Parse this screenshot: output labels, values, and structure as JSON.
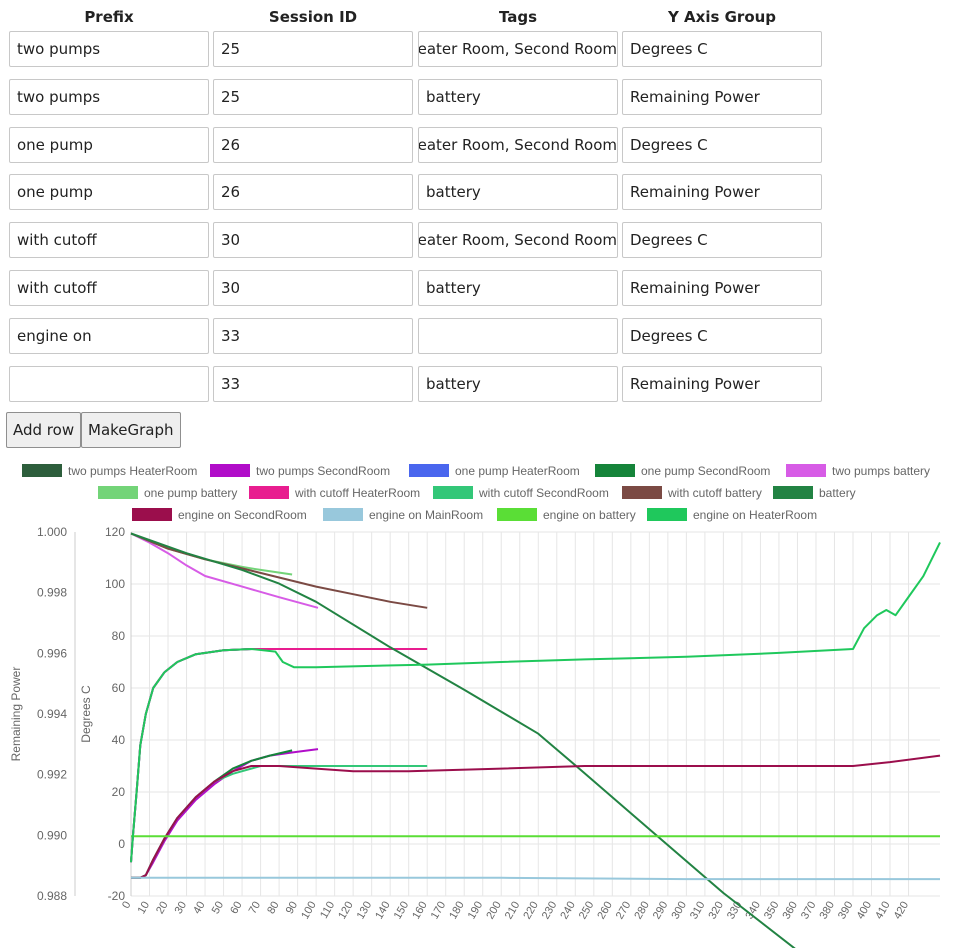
{
  "table": {
    "headers": [
      "Prefix",
      "Session ID",
      "Tags",
      "Y Axis Group"
    ],
    "rows": [
      {
        "prefix": "two pumps",
        "session": "25",
        "tags": "Heater Room, Second Room",
        "group": "Degrees C"
      },
      {
        "prefix": "two pumps",
        "session": "25",
        "tags": "battery",
        "group": "Remaining Power"
      },
      {
        "prefix": "one pump",
        "session": "26",
        "tags": "Heater Room, Second Room",
        "group": "Degrees C"
      },
      {
        "prefix": "one pump",
        "session": "26",
        "tags": "battery",
        "group": "Remaining Power"
      },
      {
        "prefix": "with cutoff",
        "session": "30",
        "tags": "Heater Room, Second Room",
        "group": "Degrees C"
      },
      {
        "prefix": "with cutoff",
        "session": "30",
        "tags": "battery",
        "group": "Remaining Power"
      },
      {
        "prefix": "engine on",
        "session": "33",
        "tags": "",
        "group": "Degrees C"
      },
      {
        "prefix": "",
        "session": "33",
        "tags": "battery",
        "group": "Remaining Power"
      }
    ]
  },
  "buttons": {
    "add_row": "Add row",
    "make_graph": "MakeGraph"
  },
  "chart_data": {
    "type": "line",
    "title": "",
    "xlabel": "",
    "x_ticks": [
      0,
      10,
      20,
      30,
      40,
      50,
      60,
      70,
      80,
      90,
      100,
      110,
      120,
      130,
      140,
      150,
      160,
      170,
      180,
      190,
      200,
      210,
      220,
      230,
      240,
      250,
      260,
      270,
      280,
      290,
      300,
      310,
      320,
      330,
      340,
      350,
      360,
      370,
      380,
      390,
      400,
      410,
      420
    ],
    "xlim": [
      0,
      437
    ],
    "y_left": {
      "label": "Remaining Power",
      "lim": [
        0.988,
        1.0
      ],
      "ticks": [
        "0.988",
        "0.990",
        "0.992",
        "0.994",
        "0.996",
        "0.998",
        "1.000"
      ]
    },
    "y_right": {
      "label": "Degrees C",
      "lim": [
        -20,
        120
      ],
      "ticks": [
        "-20",
        "0",
        "20",
        "40",
        "60",
        "80",
        "100",
        "120"
      ]
    },
    "grid": true,
    "legend_position": "top",
    "series": [
      {
        "name": "two pumps HeaterRoom",
        "color": "#2d5e3c",
        "axis": "deg",
        "points": [
          [
            0,
            -7
          ],
          [
            1,
            3
          ],
          [
            3,
            20
          ],
          [
            5,
            38
          ],
          [
            8,
            50
          ],
          [
            12,
            60
          ],
          [
            18,
            66
          ],
          [
            25,
            70
          ],
          [
            35,
            73
          ],
          [
            50,
            74.5
          ],
          [
            65,
            75
          ],
          [
            88,
            75
          ]
        ]
      },
      {
        "name": "two pumps SecondRoom",
        "color": "#b10dc9",
        "axis": "deg",
        "points": [
          [
            0,
            -13
          ],
          [
            5,
            -13
          ],
          [
            8,
            -12
          ],
          [
            12,
            -7
          ],
          [
            18,
            1
          ],
          [
            25,
            9
          ],
          [
            35,
            17
          ],
          [
            45,
            23
          ],
          [
            55,
            28
          ],
          [
            65,
            32
          ],
          [
            75,
            34
          ],
          [
            85,
            35
          ],
          [
            90,
            35.5
          ],
          [
            101,
            36.5
          ]
        ]
      },
      {
        "name": "one pump HeaterRoom",
        "color": "#4a66ee",
        "axis": "deg",
        "points": [
          [
            0,
            -7
          ],
          [
            1,
            3
          ],
          [
            3,
            20
          ],
          [
            5,
            38
          ],
          [
            8,
            50
          ],
          [
            12,
            60
          ],
          [
            18,
            66
          ],
          [
            25,
            70
          ],
          [
            35,
            73
          ],
          [
            50,
            74.5
          ],
          [
            65,
            75
          ],
          [
            78,
            75
          ]
        ]
      },
      {
        "name": "one pump SecondRoom",
        "color": "#15843a",
        "axis": "deg",
        "points": [
          [
            0,
            -13
          ],
          [
            5,
            -13
          ],
          [
            8,
            -12
          ],
          [
            12,
            -6
          ],
          [
            18,
            2
          ],
          [
            25,
            10
          ],
          [
            35,
            18
          ],
          [
            45,
            24
          ],
          [
            55,
            29
          ],
          [
            65,
            32
          ],
          [
            75,
            34
          ],
          [
            87,
            36
          ]
        ]
      },
      {
        "name": "two pumps battery",
        "color": "#d75ce6",
        "axis": "pow",
        "points": [
          [
            0,
            0.99995
          ],
          [
            10,
            0.99965
          ],
          [
            20,
            0.9993
          ],
          [
            30,
            0.9989
          ],
          [
            40,
            0.99855
          ],
          [
            60,
            0.9982
          ],
          [
            80,
            0.99785
          ],
          [
            101,
            0.9975
          ]
        ]
      },
      {
        "name": "one pump battery",
        "color": "#73d478",
        "axis": "pow",
        "points": [
          [
            0,
            0.99995
          ],
          [
            20,
            0.99945
          ],
          [
            40,
            0.9991
          ],
          [
            60,
            0.99885
          ],
          [
            70,
            0.99875
          ],
          [
            87,
            0.9986
          ]
        ]
      },
      {
        "name": "with cutoff HeaterRoom",
        "color": "#e81d8f",
        "axis": "deg",
        "points": [
          [
            0,
            -7
          ],
          [
            1,
            3
          ],
          [
            3,
            20
          ],
          [
            5,
            38
          ],
          [
            8,
            50
          ],
          [
            12,
            60
          ],
          [
            18,
            66
          ],
          [
            25,
            70
          ],
          [
            35,
            73
          ],
          [
            50,
            74.5
          ],
          [
            65,
            75
          ],
          [
            80,
            75
          ],
          [
            100,
            75
          ],
          [
            120,
            75
          ],
          [
            140,
            75
          ],
          [
            160,
            75
          ]
        ]
      },
      {
        "name": "with cutoff SecondRoom",
        "color": "#33c778",
        "axis": "deg",
        "points": [
          [
            0,
            -13
          ],
          [
            5,
            -13
          ],
          [
            8,
            -12
          ],
          [
            12,
            -6
          ],
          [
            18,
            2
          ],
          [
            25,
            10
          ],
          [
            35,
            18
          ],
          [
            45,
            24
          ],
          [
            55,
            27
          ],
          [
            70,
            30
          ],
          [
            90,
            30
          ],
          [
            120,
            30
          ],
          [
            160,
            30
          ]
        ]
      },
      {
        "name": "with cutoff battery",
        "color": "#7b4a44",
        "axis": "pow",
        "points": [
          [
            0,
            0.99995
          ],
          [
            20,
            0.99945
          ],
          [
            40,
            0.9991
          ],
          [
            60,
            0.9988
          ],
          [
            80,
            0.9985
          ],
          [
            100,
            0.9982
          ],
          [
            120,
            0.99795
          ],
          [
            140,
            0.9977
          ],
          [
            160,
            0.9975
          ]
        ]
      },
      {
        "name": "battery",
        "color": "#228343",
        "axis": "pow",
        "points": [
          [
            0,
            0.99995
          ],
          [
            30,
            0.9993
          ],
          [
            60,
            0.99875
          ],
          [
            80,
            0.9983
          ],
          [
            100,
            0.9977
          ],
          [
            140,
            0.9962
          ],
          [
            180,
            0.9948
          ],
          [
            220,
            0.99335
          ],
          [
            245,
            0.99205
          ],
          [
            280,
            0.9902
          ],
          [
            320,
            0.9881
          ],
          [
            360,
            0.9862
          ],
          [
            380,
            0.9853
          ],
          [
            392,
            0.9848
          ],
          [
            437,
            0.98475
          ]
        ]
      },
      {
        "name": "engine on SecondRoom",
        "color": "#9b0e4c",
        "axis": "deg",
        "points": [
          [
            0,
            -13
          ],
          [
            5,
            -13
          ],
          [
            8,
            -12
          ],
          [
            12,
            -6
          ],
          [
            18,
            2
          ],
          [
            25,
            10
          ],
          [
            35,
            18
          ],
          [
            45,
            24
          ],
          [
            55,
            28
          ],
          [
            65,
            30
          ],
          [
            80,
            30
          ],
          [
            100,
            29
          ],
          [
            120,
            28
          ],
          [
            150,
            28
          ],
          [
            200,
            29
          ],
          [
            245,
            30
          ],
          [
            300,
            30
          ],
          [
            350,
            30
          ],
          [
            390,
            30
          ],
          [
            410,
            31.5
          ],
          [
            437,
            34
          ]
        ]
      },
      {
        "name": "engine on MainRoom",
        "color": "#98c8dc",
        "axis": "deg",
        "points": [
          [
            0,
            -13
          ],
          [
            100,
            -13
          ],
          [
            200,
            -13
          ],
          [
            300,
            -13.5
          ],
          [
            437,
            -13.5
          ]
        ]
      },
      {
        "name": "engine on battery",
        "color": "#5ade36",
        "axis": "pow",
        "points": [
          [
            0,
            0.98997
          ],
          [
            437,
            0.98997
          ]
        ]
      },
      {
        "name": "engine on HeaterRoom",
        "color": "#1fc85c",
        "axis": "deg",
        "points": [
          [
            0,
            -7
          ],
          [
            1,
            3
          ],
          [
            3,
            20
          ],
          [
            5,
            38
          ],
          [
            8,
            50
          ],
          [
            12,
            60
          ],
          [
            18,
            66
          ],
          [
            25,
            70
          ],
          [
            35,
            73
          ],
          [
            50,
            74.5
          ],
          [
            65,
            75
          ],
          [
            78,
            74
          ],
          [
            82,
            70
          ],
          [
            88,
            68
          ],
          [
            100,
            68
          ],
          [
            130,
            68.5
          ],
          [
            160,
            69
          ],
          [
            200,
            70
          ],
          [
            245,
            71
          ],
          [
            300,
            72
          ],
          [
            350,
            73.5
          ],
          [
            390,
            75
          ],
          [
            396,
            83
          ],
          [
            403,
            88
          ],
          [
            408,
            90
          ],
          [
            413,
            88
          ],
          [
            420,
            95
          ],
          [
            428,
            103
          ],
          [
            437,
            116
          ]
        ]
      }
    ]
  }
}
